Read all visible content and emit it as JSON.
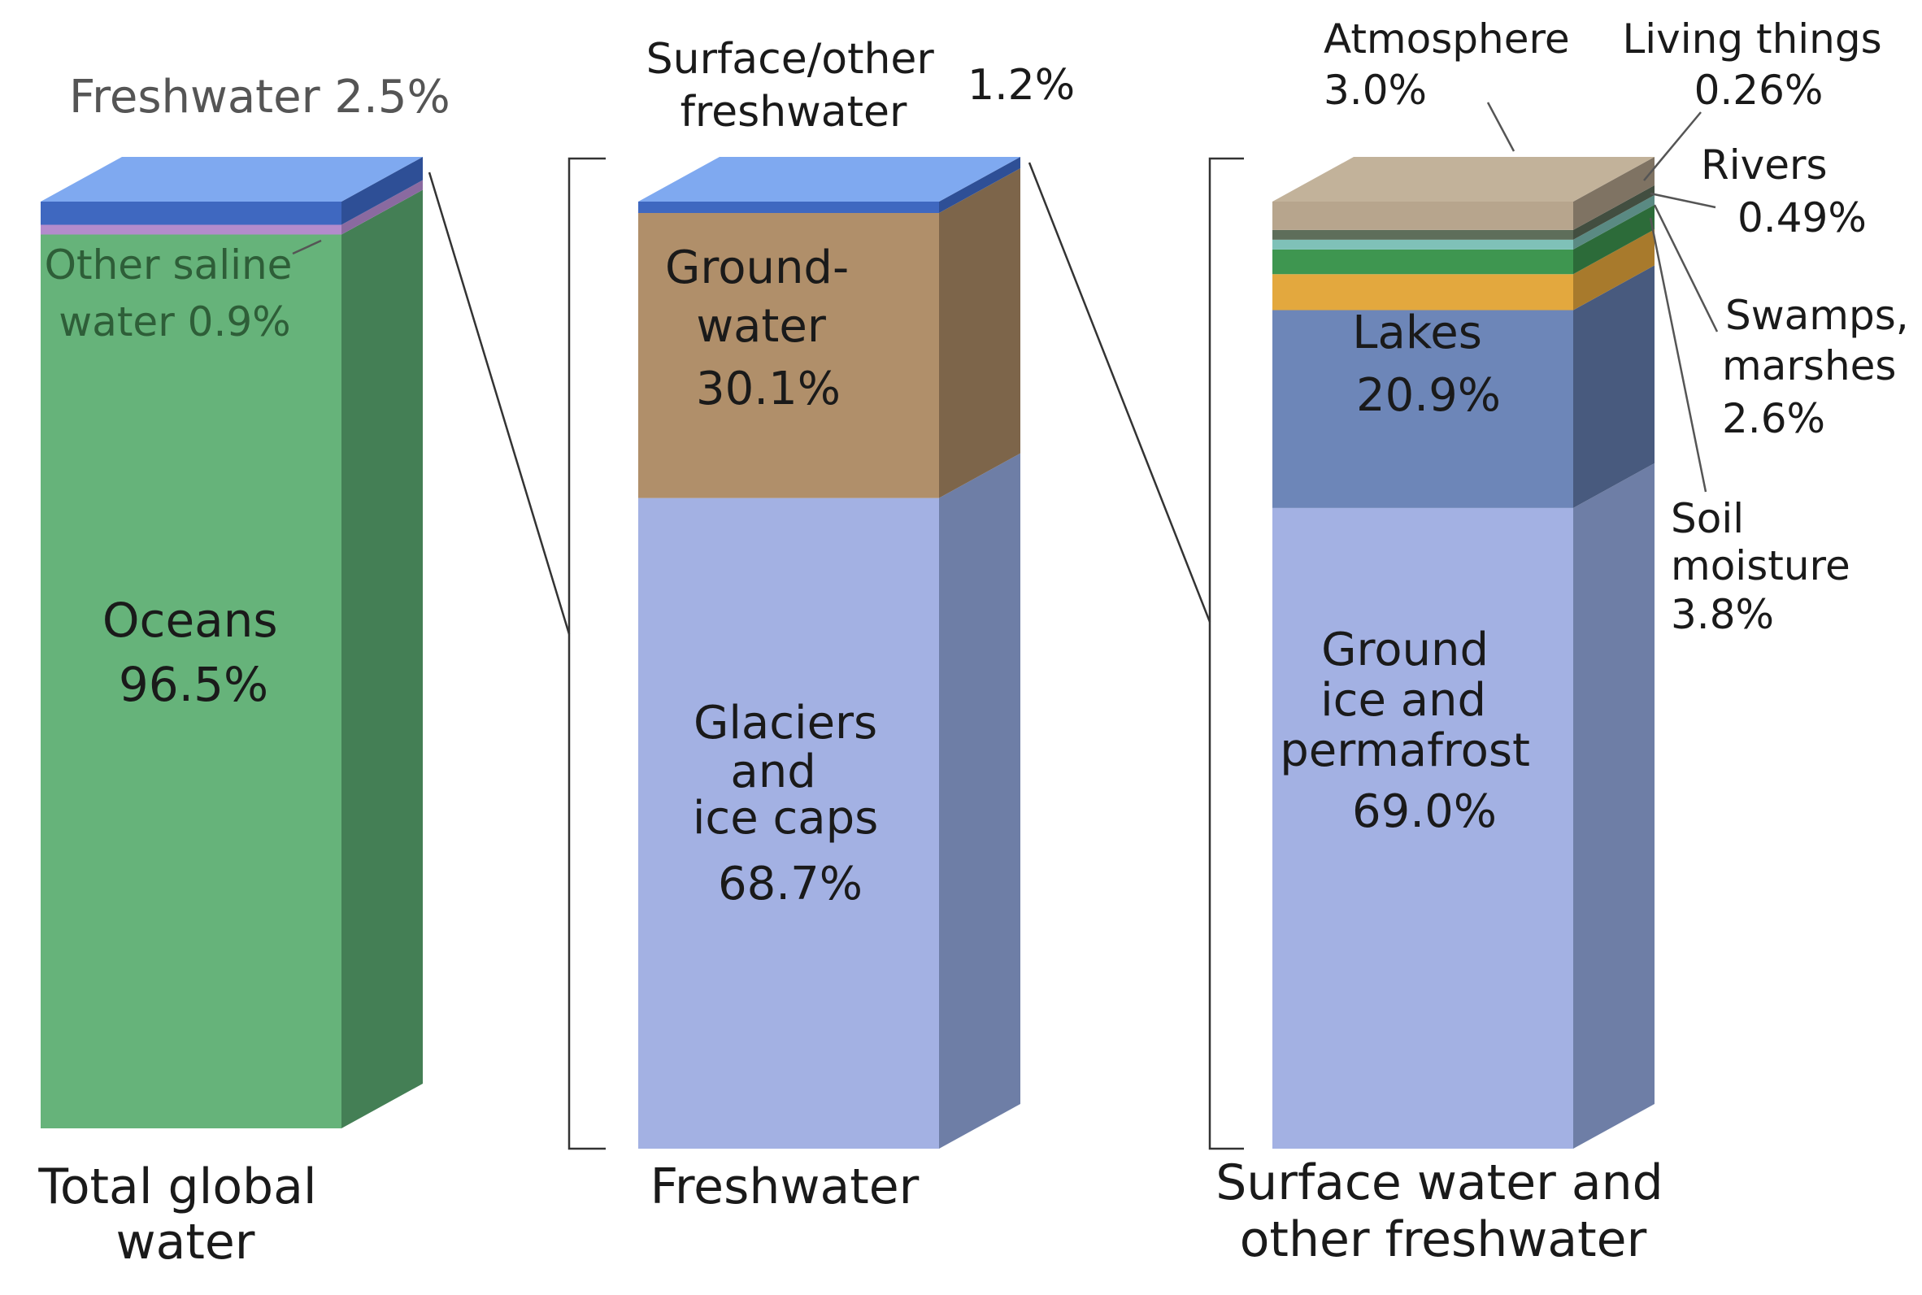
{
  "chart_data": [
    {
      "type": "bar",
      "stacked": true,
      "category": "Total global water",
      "segments": [
        {
          "name": "Oceans",
          "value_label": "96.5%",
          "value": 96.5,
          "color": "#66b37a",
          "side_color": "#447f55"
        },
        {
          "name": "Other saline water",
          "value_label": "0.9%",
          "value": 0.9,
          "color": "#b38ccc",
          "side_color": "#8a6aa0"
        },
        {
          "name": "Freshwater",
          "value_label": "2.5%",
          "value": 2.5,
          "color": "#3f68c0",
          "side_color": "#2e4f96"
        }
      ]
    },
    {
      "type": "bar",
      "stacked": true,
      "category": "Freshwater",
      "segments": [
        {
          "name": "Glaciers and ice caps",
          "value_label": "68.7%",
          "value": 68.7,
          "color": "#a3b1e3",
          "side_color": "#6e7ea6"
        },
        {
          "name": "Ground-water",
          "value_label": "30.1%",
          "value": 30.1,
          "color": "#b08f6a",
          "side_color": "#7d654a"
        },
        {
          "name": "Surface/other freshwater",
          "value_label": "1.2%",
          "value": 1.2,
          "color": "#3f68c0",
          "side_color": "#2e4f96"
        }
      ]
    },
    {
      "type": "bar",
      "stacked": true,
      "category": "Surface water and other freshwater",
      "segments": [
        {
          "name": "Ground ice and permafrost",
          "value_label": "69.0%",
          "value": 69.0,
          "color": "#a3b1e3",
          "side_color": "#6e7ea6"
        },
        {
          "name": "Lakes",
          "value_label": "20.9%",
          "value": 20.9,
          "color": "#6d86b8",
          "side_color": "#485a7e"
        },
        {
          "name": "Soil moisture",
          "value_label": "3.8%",
          "value": 3.8,
          "color": "#e3a83e",
          "side_color": "#a87a2c"
        },
        {
          "name": "Swamps, marshes",
          "value_label": "2.6%",
          "value": 2.6,
          "color": "#3e9650",
          "side_color": "#2c6b39"
        },
        {
          "name": "Rivers",
          "value_label": "0.49%",
          "value": 0.49,
          "color": "#7fc1b8",
          "side_color": "#5a8a83"
        },
        {
          "name": "Living things",
          "value_label": "0.26%",
          "value": 0.26,
          "color": "#5e6e5a",
          "side_color": "#424e40"
        },
        {
          "name": "Atmosphere",
          "value_label": "3.0%",
          "value": 3.0,
          "color": "#b7a58d",
          "side_color": "#7f7363"
        }
      ]
    }
  ],
  "labels": {
    "bar1_category": [
      "Total global",
      "water"
    ],
    "bar2_category": "Freshwater",
    "bar3_category": [
      "Surface water and",
      "other freshwater"
    ],
    "freshwater_callout": "Freshwater 2.5%",
    "other_saline": [
      "Other saline",
      "water 0.9%"
    ],
    "oceans": [
      "Oceans",
      "96.5%"
    ],
    "surface_other": [
      "Surface/other",
      "freshwater"
    ],
    "surface_other_value": "1.2%",
    "groundwater": [
      "Ground-",
      "water",
      "30.1%"
    ],
    "glaciers": [
      "Glaciers",
      "and",
      "ice caps",
      "68.7%"
    ],
    "atmosphere": [
      "Atmosphere",
      "3.0%"
    ],
    "living_things": [
      "Living things",
      "0.26%"
    ],
    "rivers": [
      "Rivers",
      "0.49%"
    ],
    "swamps": [
      "Swamps,",
      "marshes",
      "2.6%"
    ],
    "soil": [
      "Soil",
      "moisture",
      "3.8%"
    ],
    "lakes": [
      "Lakes",
      "20.9%"
    ],
    "ground_ice": [
      "Ground",
      "ice and",
      "permafrost",
      "69.0%"
    ]
  }
}
